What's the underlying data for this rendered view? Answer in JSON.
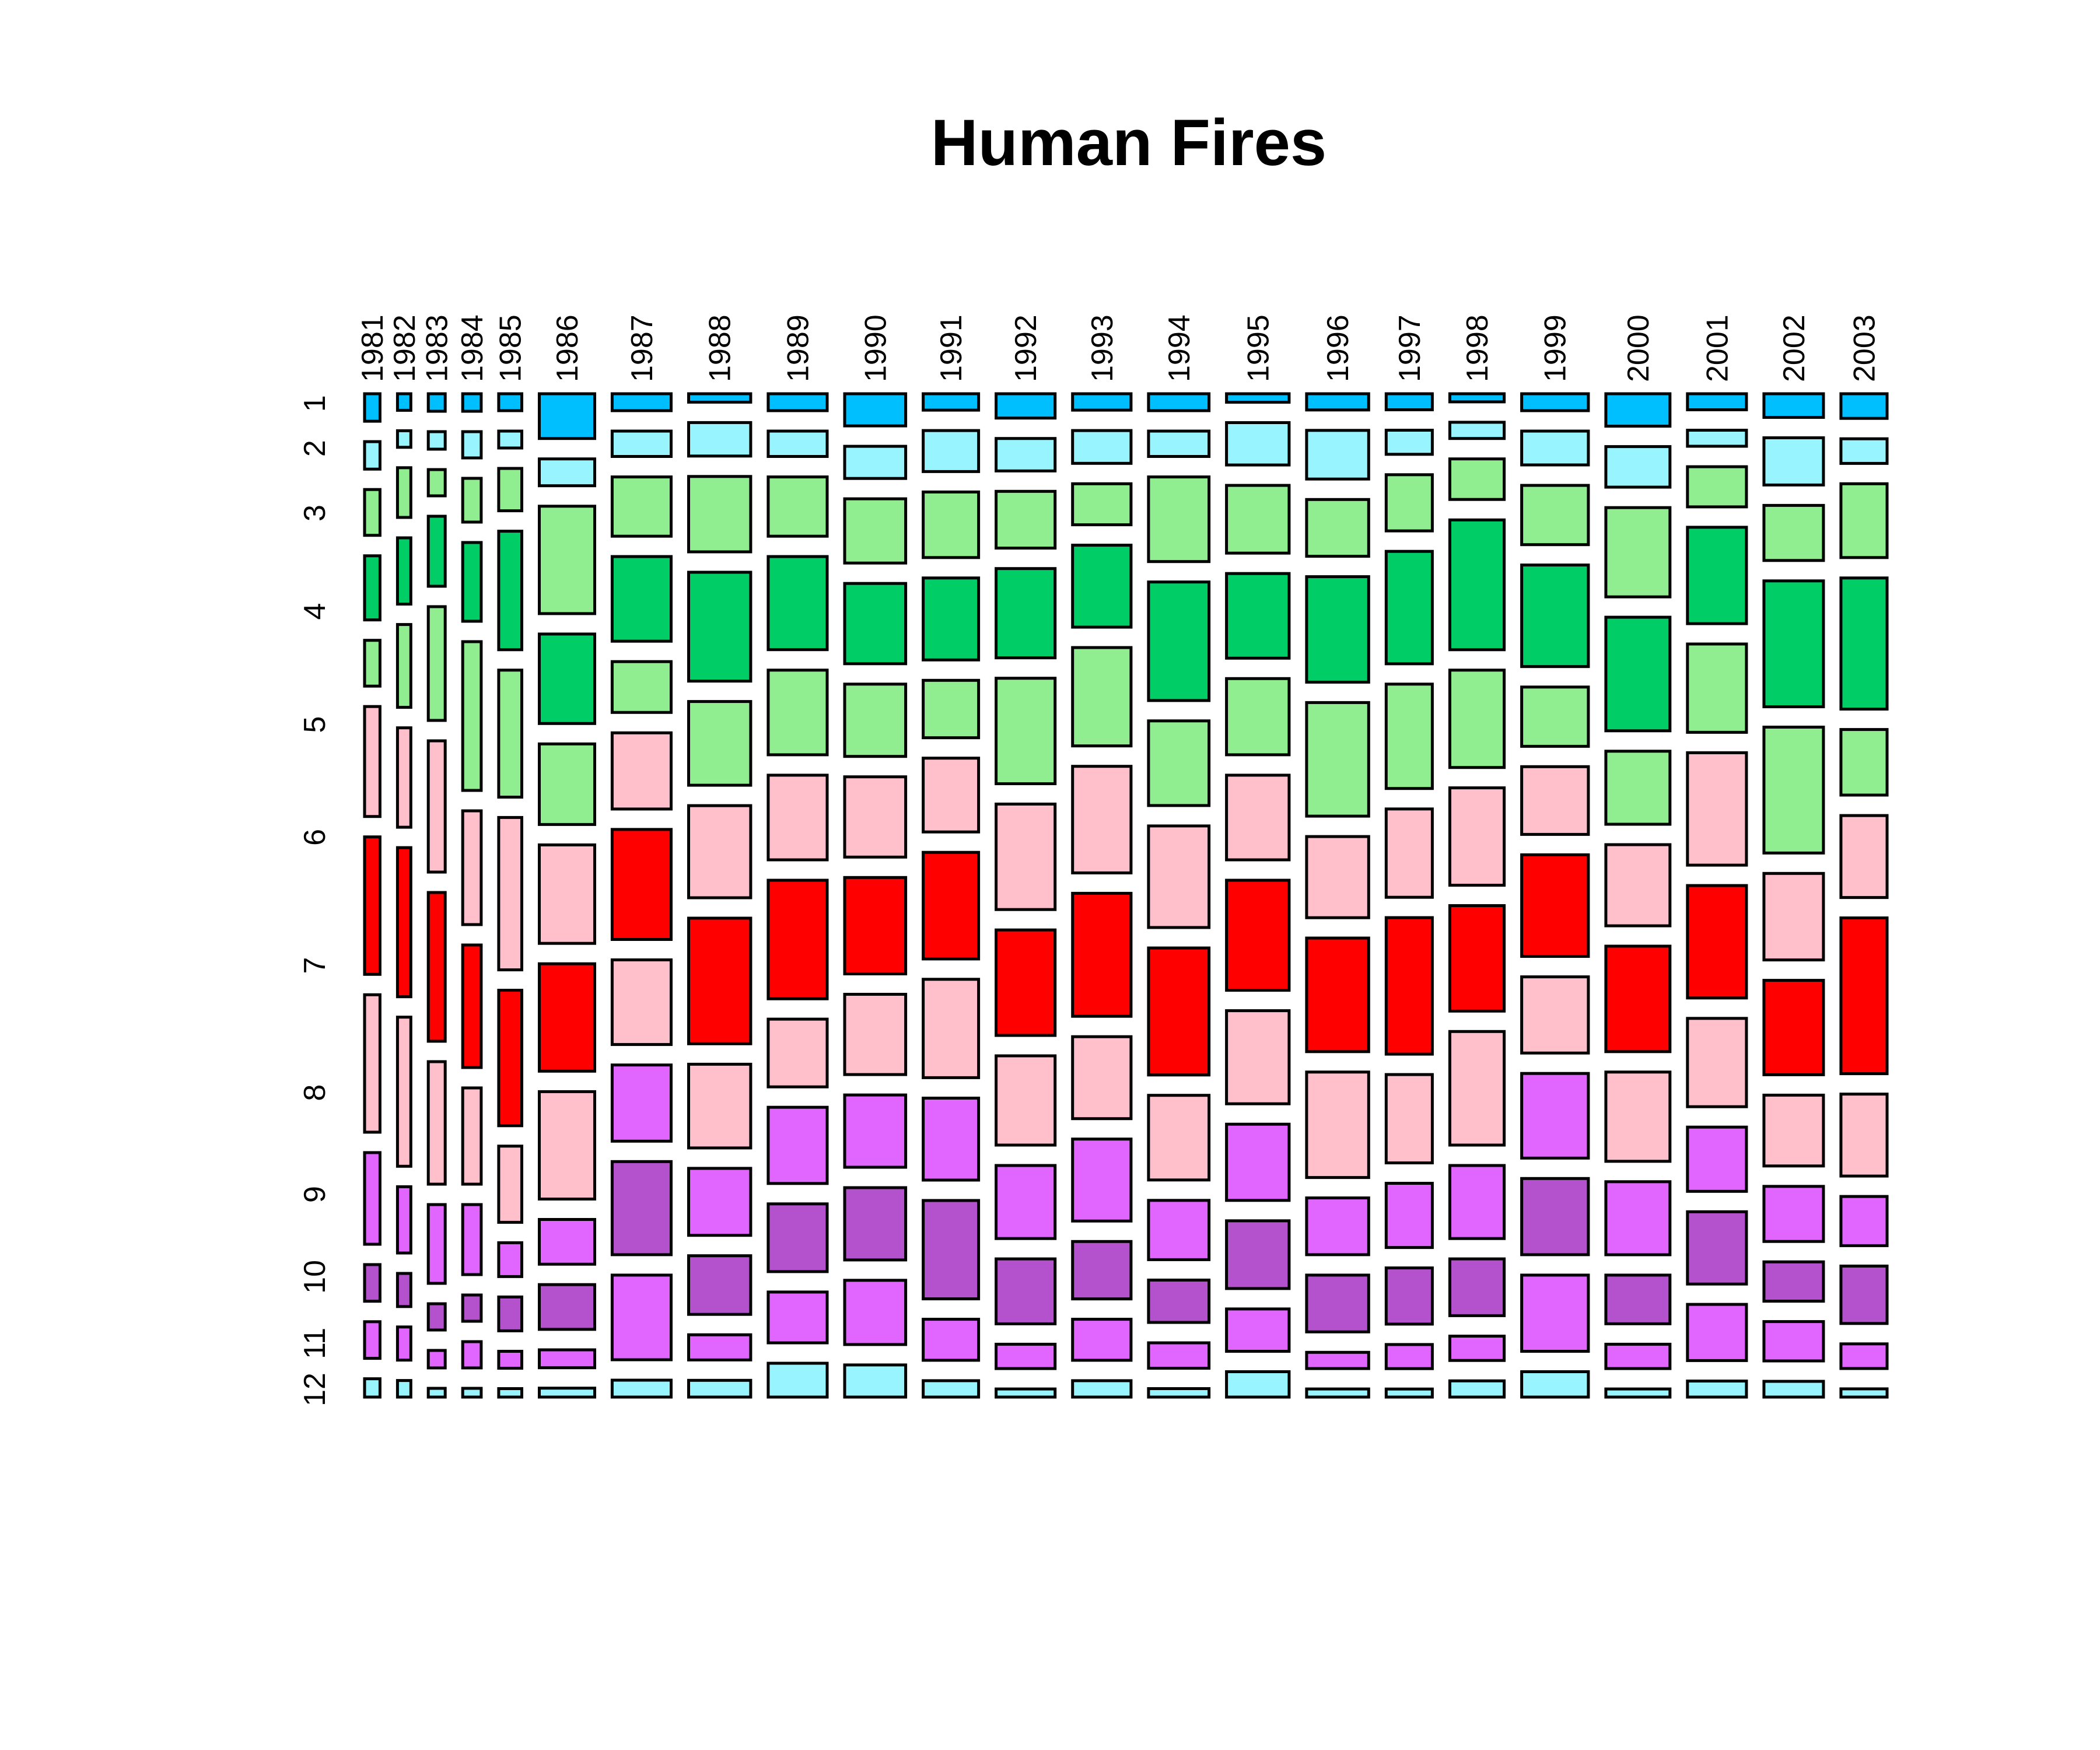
{
  "chart_data": {
    "type": "mosaic",
    "title": "Human Fires",
    "xlabel": "",
    "ylabel": "",
    "years": [
      "1981",
      "1982",
      "1983",
      "1984",
      "1985",
      "1986",
      "1987",
      "1988",
      "1989",
      "1990",
      "1991",
      "1992",
      "1993",
      "1994",
      "1995",
      "1996",
      "1997",
      "1998",
      "1999",
      "2000",
      "2001",
      "2002",
      "2003"
    ],
    "months": [
      "1",
      "2",
      "3",
      "4",
      "5",
      "6",
      "7",
      "8",
      "9",
      "10",
      "11",
      "12"
    ],
    "month_colors": [
      "#00BFFF",
      "#98F5FF",
      "#90EE90",
      "#00CD66",
      "#90EE90",
      "#FFC0CB",
      "#FF0000",
      "#FFC0CB",
      "#E066FF",
      "#B452CD",
      "#E066FF",
      "#98F5FF"
    ],
    "year_totals": [
      300,
      260,
      330,
      360,
      450,
      1080,
      1150,
      1210,
      1150,
      1190,
      1080,
      1150,
      1140,
      1180,
      1220,
      1210,
      900,
      1060,
      1300,
      1250,
      1150,
      1160,
      900
    ],
    "proportions": [
      [
        0.03,
        0.03,
        0.05,
        0.07,
        0.05,
        0.12,
        0.15,
        0.15,
        0.1,
        0.04,
        0.04,
        0.02
      ],
      [
        0.02,
        0.02,
        0.06,
        0.08,
        0.1,
        0.12,
        0.18,
        0.18,
        0.08,
        0.04,
        0.04,
        0.02
      ],
      [
        0.02,
        0.02,
        0.03,
        0.08,
        0.13,
        0.15,
        0.17,
        0.14,
        0.09,
        0.03,
        0.02,
        0.01
      ],
      [
        0.02,
        0.03,
        0.05,
        0.09,
        0.17,
        0.13,
        0.14,
        0.11,
        0.08,
        0.03,
        0.03,
        0.01
      ],
      [
        0.02,
        0.02,
        0.05,
        0.14,
        0.15,
        0.18,
        0.16,
        0.09,
        0.04,
        0.04,
        0.02,
        0.01
      ],
      [
        0.05,
        0.03,
        0.12,
        0.1,
        0.09,
        0.11,
        0.12,
        0.12,
        0.05,
        0.05,
        0.02,
        0.01
      ],
      [
        0.02,
        0.03,
        0.07,
        0.1,
        0.06,
        0.09,
        0.13,
        0.1,
        0.09,
        0.11,
        0.1,
        0.02
      ],
      [
        0.01,
        0.04,
        0.09,
        0.13,
        0.1,
        0.11,
        0.15,
        0.1,
        0.08,
        0.07,
        0.03,
        0.02
      ],
      [
        0.02,
        0.03,
        0.07,
        0.11,
        0.1,
        0.1,
        0.14,
        0.08,
        0.09,
        0.08,
        0.06,
        0.04
      ],
      [
        0.04,
        0.04,
        0.08,
        0.1,
        0.09,
        0.1,
        0.12,
        0.1,
        0.09,
        0.09,
        0.08,
        0.04
      ],
      [
        0.02,
        0.05,
        0.08,
        0.1,
        0.07,
        0.09,
        0.13,
        0.12,
        0.1,
        0.12,
        0.05,
        0.02
      ],
      [
        0.03,
        0.04,
        0.07,
        0.11,
        0.13,
        0.13,
        0.13,
        0.11,
        0.09,
        0.08,
        0.03,
        0.01
      ],
      [
        0.02,
        0.04,
        0.05,
        0.1,
        0.12,
        0.13,
        0.15,
        0.1,
        0.1,
        0.07,
        0.05,
        0.02
      ],
      [
        0.02,
        0.03,
        0.1,
        0.14,
        0.1,
        0.12,
        0.15,
        0.1,
        0.07,
        0.05,
        0.03,
        0.01
      ],
      [
        0.01,
        0.05,
        0.08,
        0.1,
        0.09,
        0.1,
        0.13,
        0.11,
        0.09,
        0.08,
        0.05,
        0.03
      ],
      [
        0.02,
        0.06,
        0.07,
        0.13,
        0.14,
        0.1,
        0.14,
        0.13,
        0.07,
        0.07,
        0.02,
        0.01
      ],
      [
        0.02,
        0.03,
        0.07,
        0.14,
        0.13,
        0.11,
        0.17,
        0.11,
        0.08,
        0.07,
        0.03,
        0.01
      ],
      [
        0.01,
        0.02,
        0.05,
        0.16,
        0.12,
        0.12,
        0.13,
        0.14,
        0.09,
        0.07,
        0.03,
        0.02
      ],
      [
        0.02,
        0.04,
        0.07,
        0.12,
        0.07,
        0.08,
        0.12,
        0.09,
        0.1,
        0.09,
        0.09,
        0.03
      ],
      [
        0.04,
        0.05,
        0.11,
        0.14,
        0.09,
        0.1,
        0.13,
        0.11,
        0.09,
        0.06,
        0.03,
        0.01
      ],
      [
        0.02,
        0.02,
        0.05,
        0.12,
        0.11,
        0.14,
        0.14,
        0.11,
        0.08,
        0.09,
        0.07,
        0.02
      ],
      [
        0.03,
        0.06,
        0.07,
        0.16,
        0.16,
        0.11,
        0.12,
        0.09,
        0.07,
        0.05,
        0.05,
        0.02
      ],
      [
        0.03,
        0.03,
        0.09,
        0.16,
        0.08,
        0.1,
        0.19,
        0.1,
        0.06,
        0.07,
        0.03,
        0.01
      ]
    ]
  }
}
